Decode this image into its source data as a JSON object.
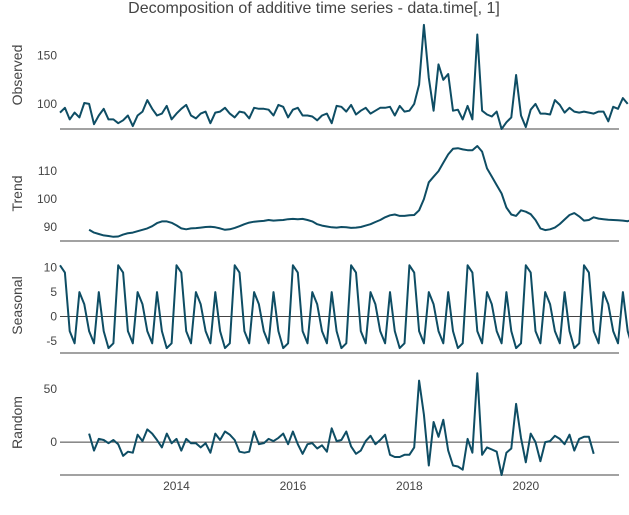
{
  "title": "Decomposition of additive time series - data.time[, 1]",
  "x_ticks": [
    "2014",
    "2016",
    "2018",
    "2020"
  ],
  "colors": {
    "line": "#0e4d64",
    "axis": "#444444",
    "zero": "#444444"
  },
  "chart_data": [
    {
      "type": "line",
      "panel": "observed",
      "ylabel": "Observed",
      "ylim": [
        74,
        186
      ],
      "yticks": [
        100,
        150
      ],
      "x_start": 2012.0,
      "x_step": 0.08333,
      "xlim": [
        2012.0,
        2021.6
      ],
      "values": [
        91,
        96,
        84,
        91,
        86,
        101,
        100,
        79,
        88,
        95,
        84,
        84,
        80,
        83,
        88,
        77,
        88,
        92,
        104,
        95,
        88,
        90,
        98,
        84,
        90,
        95,
        99,
        88,
        85,
        90,
        92,
        80,
        91,
        92,
        96,
        90,
        86,
        92,
        91,
        85,
        96,
        95,
        95,
        94,
        88,
        99,
        97,
        86,
        94,
        96,
        88,
        88,
        87,
        83,
        88,
        90,
        80,
        98,
        97,
        92,
        99,
        89,
        93,
        96,
        90,
        93,
        96,
        96,
        97,
        88,
        98,
        92,
        93,
        100,
        120,
        182,
        127,
        93,
        141,
        125,
        131,
        93,
        94,
        84,
        98,
        84,
        172,
        93,
        89,
        87,
        92,
        74,
        81,
        86,
        130,
        88,
        76,
        94,
        100,
        90,
        90,
        89,
        104,
        99,
        91,
        96,
        92,
        91,
        92,
        91,
        90,
        92,
        92,
        82,
        97,
        95,
        106,
        100
      ],
      "value_min": 74,
      "value_max": 182
    },
    {
      "type": "line",
      "panel": "trend",
      "ylabel": "Trend",
      "ylim": [
        85,
        119
      ],
      "yticks": [
        90,
        100,
        110
      ],
      "x_start": 2012.5,
      "x_step": 0.08333,
      "xlim": [
        2012.0,
        2021.6
      ],
      "values": [
        89,
        88,
        87.5,
        87,
        86.8,
        86.5,
        86.6,
        87.3,
        87.8,
        88,
        88.5,
        89,
        89.5,
        90.3,
        91.4,
        92,
        92,
        91.5,
        90.6,
        89.5,
        89.2,
        89.5,
        89.6,
        89.8,
        90,
        90.1,
        89.9,
        89.5,
        89,
        89.2,
        89.7,
        90.3,
        91,
        91.6,
        91.9,
        92.1,
        92.2,
        92.5,
        92.3,
        92.4,
        92.5,
        92.8,
        92.9,
        92.8,
        92.9,
        92.5,
        92,
        91,
        90.5,
        90.2,
        89.9,
        89.8,
        90,
        89.9,
        89.7,
        89.8,
        90,
        90.5,
        91,
        91.8,
        92.5,
        93.5,
        94.2,
        94.5,
        94,
        94,
        94.2,
        94.3,
        96,
        100,
        106,
        108,
        110,
        113,
        116,
        118,
        118.2,
        117.8,
        117.5,
        117.5,
        119,
        117,
        111,
        108,
        105,
        102,
        97,
        94.5,
        94,
        96,
        95.5,
        94.6,
        92.5,
        89.5,
        88.9,
        89.2,
        89.8,
        91.1,
        92.7,
        94.3,
        95,
        93.8,
        92.3,
        92.5,
        93.5,
        93,
        92.8,
        92.6,
        92.5,
        92.4,
        92.3,
        92.1,
        92.7
      ],
      "value_min": 86.5,
      "value_max": 119
    },
    {
      "type": "line",
      "panel": "seasonal",
      "ylabel": "Seasonal",
      "ylim": [
        -7.5,
        12
      ],
      "yticks": [
        -5,
        0,
        5,
        10
      ],
      "x_start": 2012.0,
      "x_step": 0.08333,
      "xlim": [
        2012.0,
        2021.6
      ],
      "cycles": 10,
      "cycle": [
        10.5,
        9,
        -3,
        -5.5,
        5,
        2.5,
        -3,
        -5.5,
        5,
        -3,
        -6.5,
        -5.5
      ]
    },
    {
      "type": "line",
      "panel": "random",
      "ylabel": "Random",
      "ylim": [
        -31,
        68
      ],
      "yticks": [
        0,
        50
      ],
      "x_start": 2012.5,
      "x_step": 0.08333,
      "xlim": [
        2012.0,
        2021.6
      ],
      "values": [
        8,
        -8,
        3,
        2,
        -1,
        2,
        -2,
        -13,
        -9,
        -10,
        7,
        1,
        12,
        8,
        2,
        -5,
        8,
        -1,
        3,
        -8,
        3,
        -1,
        -1,
        -5,
        -1,
        -10,
        8,
        2,
        10,
        7,
        2,
        -9,
        -10,
        -9,
        10,
        -2,
        -1,
        3,
        1,
        4,
        8,
        -2,
        10,
        -2,
        -11,
        -2,
        -1,
        -6,
        -3,
        -9,
        13,
        1,
        2,
        10,
        -4,
        -11,
        -8,
        1,
        6,
        -2,
        2,
        7,
        -12,
        -14,
        -14,
        -12,
        -12,
        -5,
        58,
        26,
        -22,
        19,
        5,
        21,
        -8,
        -22,
        -23,
        -26,
        3,
        -10,
        65,
        -12,
        -5,
        -7,
        -9,
        -31,
        -10,
        -6,
        36,
        4,
        -19,
        8,
        0,
        -18,
        0,
        1,
        6,
        3,
        -2,
        7,
        -8,
        3,
        5,
        5,
        -11
      ]
    }
  ]
}
